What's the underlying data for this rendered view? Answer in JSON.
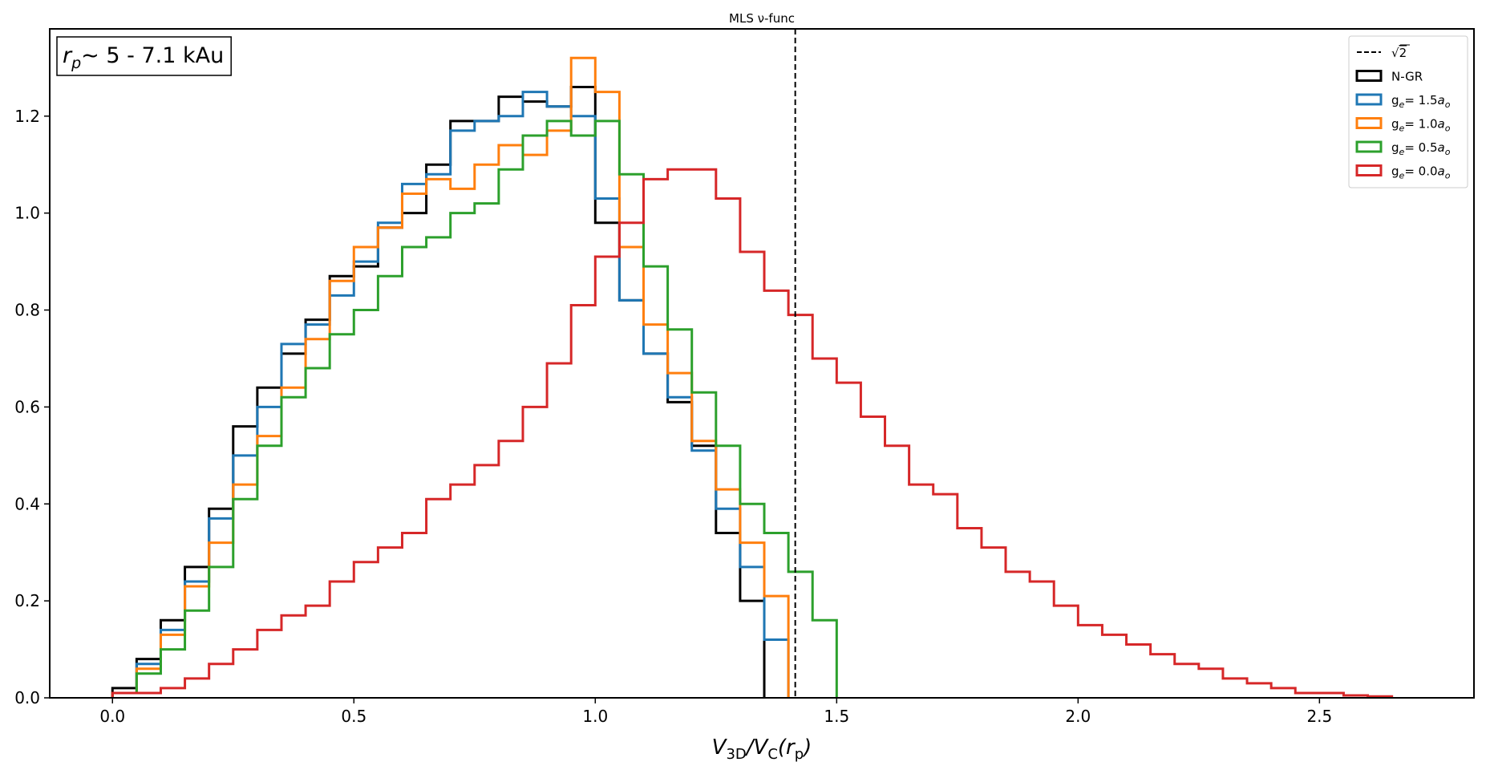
{
  "chart_data": {
    "type": "histogram-step",
    "title": "MLS ν-func",
    "xlabel": "V_3D/V_C(r_p)",
    "ylabel": "",
    "xlim": [
      -0.13,
      2.82
    ],
    "ylim": [
      0,
      1.38
    ],
    "xticks": [
      0.0,
      0.5,
      1.0,
      1.5,
      2.0,
      2.5
    ],
    "xtick_labels": [
      "0.0",
      "0.5",
      "1.0",
      "1.5",
      "2.0",
      "2.5"
    ],
    "yticks": [
      0.0,
      0.2,
      0.4,
      0.6,
      0.8,
      1.0,
      1.2
    ],
    "ytick_labels": [
      "0.0",
      "0.2",
      "0.4",
      "0.6",
      "0.8",
      "1.0",
      "1.2"
    ],
    "grid": false,
    "legend_placement": "top-right",
    "annotation": {
      "text_prefix": "r",
      "text_sub": "p",
      "text_suffix": "∼   5 - 7.1 kAu",
      "placement": "top-left"
    },
    "vline": {
      "x": 1.4142,
      "style": "dashed",
      "color": "#000000",
      "label": "√2",
      "label_root": "√",
      "label_arg": "2"
    },
    "series": [
      {
        "name": "N-GR",
        "name_parts": [
          "N-GR"
        ],
        "color": "#000000",
        "start": 0.0,
        "width": 0.05,
        "values": [
          0.02,
          0.08,
          0.16,
          0.27,
          0.39,
          0.56,
          0.64,
          0.71,
          0.78,
          0.87,
          0.89,
          0.97,
          1.0,
          1.1,
          1.19,
          1.19,
          1.24,
          1.23,
          1.22,
          1.26,
          0.98,
          0.82,
          0.71,
          0.61,
          0.52,
          0.34,
          0.2
        ]
      },
      {
        "name": "ge= 1.5ao",
        "name_parts": [
          "g",
          "e",
          "= 1.5",
          "a",
          "o"
        ],
        "color": "#1f77b4",
        "start": 0.0,
        "width": 0.05,
        "values": [
          0.01,
          0.07,
          0.14,
          0.24,
          0.37,
          0.5,
          0.6,
          0.73,
          0.77,
          0.83,
          0.9,
          0.98,
          1.06,
          1.08,
          1.17,
          1.19,
          1.2,
          1.25,
          1.22,
          1.2,
          1.03,
          0.82,
          0.71,
          0.62,
          0.51,
          0.39,
          0.27,
          0.12
        ]
      },
      {
        "name": "ge= 1.0ao",
        "name_parts": [
          "g",
          "e",
          "= 1.0",
          "a",
          "o"
        ],
        "color": "#ff7f0e",
        "start": 0.0,
        "width": 0.05,
        "values": [
          0.01,
          0.06,
          0.13,
          0.23,
          0.32,
          0.44,
          0.54,
          0.64,
          0.74,
          0.86,
          0.93,
          0.97,
          1.04,
          1.07,
          1.05,
          1.1,
          1.14,
          1.12,
          1.17,
          1.32,
          1.25,
          0.93,
          0.77,
          0.67,
          0.53,
          0.43,
          0.32,
          0.21
        ]
      },
      {
        "name": "ge= 0.5ao",
        "name_parts": [
          "g",
          "e",
          "= 0.5",
          "a",
          "o"
        ],
        "color": "#2ca02c",
        "start": 0.0,
        "width": 0.05,
        "values": [
          0.01,
          0.05,
          0.1,
          0.18,
          0.27,
          0.41,
          0.52,
          0.62,
          0.68,
          0.75,
          0.8,
          0.87,
          0.93,
          0.95,
          1.0,
          1.02,
          1.09,
          1.16,
          1.19,
          1.16,
          1.19,
          1.08,
          0.89,
          0.76,
          0.63,
          0.52,
          0.4,
          0.34,
          0.26,
          0.16
        ]
      },
      {
        "name": "ge= 0.0ao",
        "name_parts": [
          "g",
          "e",
          "= 0.0",
          "a",
          "o"
        ],
        "color": "#d62728",
        "start": 0.0,
        "width": 0.05,
        "values": [
          0.01,
          0.01,
          0.02,
          0.04,
          0.07,
          0.1,
          0.14,
          0.17,
          0.19,
          0.24,
          0.28,
          0.31,
          0.34,
          0.41,
          0.44,
          0.48,
          0.53,
          0.6,
          0.69,
          0.81,
          0.91,
          0.98,
          1.07,
          1.09,
          1.09,
          1.03,
          0.92,
          0.84,
          0.79,
          0.7,
          0.65,
          0.58,
          0.52,
          0.44,
          0.42,
          0.35,
          0.31,
          0.26,
          0.24,
          0.19,
          0.15,
          0.13,
          0.11,
          0.09,
          0.07,
          0.06,
          0.04,
          0.03,
          0.02,
          0.01,
          0.01,
          0.005,
          0.003
        ]
      }
    ]
  }
}
